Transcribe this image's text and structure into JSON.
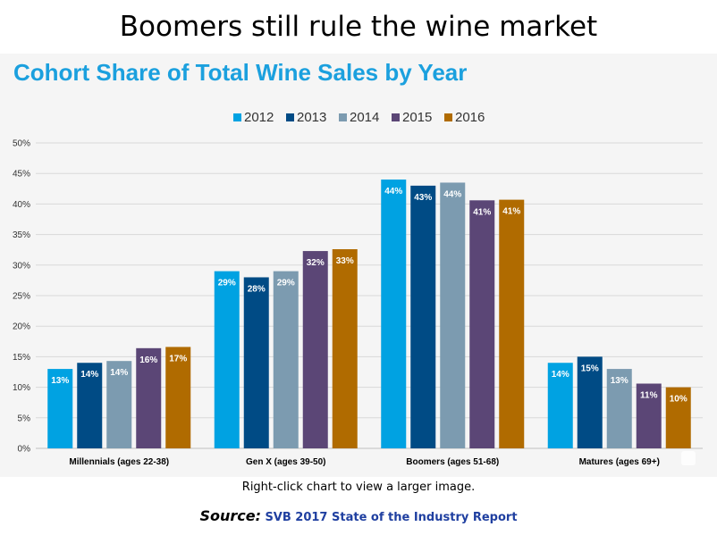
{
  "headline": "Boomers still rule the wine market",
  "caption": "Right-click chart to view a larger image.",
  "source": {
    "label": "Source:",
    "text": "SVB 2017 State of the Industry Report"
  },
  "colors": {
    "2012": "#00a2e2",
    "2013": "#004b85",
    "2014": "#7c9bb0",
    "2015": "#5b4676",
    "2016": "#b06b00",
    "title": "#1ba0de"
  },
  "chart_data": {
    "type": "bar",
    "title": "Cohort Share of Total Wine Sales by Year",
    "categories": [
      "Millennials (ages 22-38)",
      "Gen X (ages 39-50)",
      "Boomers (ages 51-68)",
      "Matures (ages 69+)"
    ],
    "series": [
      {
        "name": "2012",
        "values": [
          13,
          29,
          44,
          14
        ],
        "labels": [
          "13%",
          "29%",
          "44%",
          "14%"
        ]
      },
      {
        "name": "2013",
        "values": [
          14,
          28,
          43,
          15
        ],
        "labels": [
          "14%",
          "28%",
          "43%",
          "15%"
        ]
      },
      {
        "name": "2014",
        "values": [
          14.3,
          29,
          43.5,
          13
        ],
        "labels": [
          "14%",
          "29%",
          "44%",
          "13%"
        ]
      },
      {
        "name": "2015",
        "values": [
          16.4,
          32.3,
          40.6,
          10.6
        ],
        "labels": [
          "16%",
          "32%",
          "41%",
          "11%"
        ]
      },
      {
        "name": "2016",
        "values": [
          16.6,
          32.6,
          40.7,
          10
        ],
        "labels": [
          "17%",
          "33%",
          "41%",
          "10%"
        ]
      }
    ],
    "yticks": [
      "0%",
      "5%",
      "10%",
      "15%",
      "20%",
      "25%",
      "30%",
      "35%",
      "40%",
      "45%",
      "50%"
    ],
    "ylim": [
      0,
      50
    ],
    "legend_position": "top-center",
    "grid": true
  }
}
